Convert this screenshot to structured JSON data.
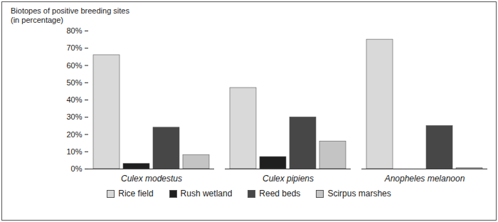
{
  "chart_data": {
    "type": "bar",
    "ylabel": "Biotopes of positive breeding sites\n(in percentage)",
    "categories": [
      "Culex modestus",
      "Culex pipiens",
      "Anopheles melanoon"
    ],
    "series": [
      {
        "name": "Rice field",
        "color": "#d9d9d9",
        "values": [
          66,
          47,
          75
        ]
      },
      {
        "name": "Rush wetland",
        "color": "#1f1f1f",
        "values": [
          3,
          7,
          0
        ]
      },
      {
        "name": "Reed beds",
        "color": "#474747",
        "values": [
          24,
          30,
          25
        ]
      },
      {
        "name": "Scirpus marshes",
        "color": "#c4c4c4",
        "values": [
          8,
          16,
          0.5
        ]
      }
    ],
    "ylim": [
      0,
      80
    ],
    "yticks": [
      {
        "value": 0,
        "label": "0%"
      },
      {
        "value": 10,
        "label": "10%"
      },
      {
        "value": 20,
        "label": "20%"
      },
      {
        "value": 30,
        "label": "30%"
      },
      {
        "value": 40,
        "label": "40%"
      },
      {
        "value": 50,
        "label": "50%"
      },
      {
        "value": 60,
        "label": "60%"
      },
      {
        "value": 70,
        "label": "70%"
      },
      {
        "value": 80,
        "label": "80%"
      }
    ],
    "grid": false,
    "legend": "bottom"
  }
}
